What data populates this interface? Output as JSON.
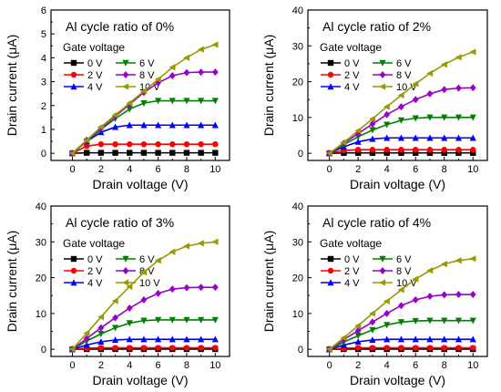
{
  "figure": {
    "x_label": "Drain voltage (V)",
    "y_label": "Drain current (μA)",
    "legend_title": "Gate voltage"
  },
  "series_colors": {
    "0 V": "#000000",
    "2 V": "#ff0000",
    "4 V": "#0000ff",
    "6 V": "#008000",
    "8 V": "#9900cc",
    "10 V": "#999900"
  },
  "series_markers": {
    "0 V": "square",
    "2 V": "circle",
    "4 V": "triangle-up",
    "6 V": "triangle-down",
    "8 V": "diamond",
    "10 V": "triangle-left"
  },
  "chart_data": [
    {
      "type": "line",
      "title": "Al cycle ratio of 0%",
      "xlabel": "Drain voltage (V)",
      "ylabel": "Drain current (μA)",
      "xlim": [
        -1.5,
        11
      ],
      "ylim": [
        -0.3,
        6
      ],
      "xticks": [
        0,
        2,
        4,
        6,
        8,
        10
      ],
      "yticks": [
        0,
        1,
        2,
        3,
        4,
        5,
        6
      ],
      "legend_title": "Gate voltage",
      "legend_position": "top-left",
      "x": [
        0,
        1,
        2,
        3,
        4,
        5,
        6,
        7,
        8,
        9,
        10
      ],
      "series": [
        {
          "name": "0 V",
          "values": [
            0,
            0.02,
            0.02,
            0.02,
            0.02,
            0.02,
            0.02,
            0.02,
            0.02,
            0.02,
            0.02
          ]
        },
        {
          "name": "2 V",
          "values": [
            0,
            0.3,
            0.38,
            0.38,
            0.38,
            0.38,
            0.38,
            0.38,
            0.38,
            0.38,
            0.38
          ]
        },
        {
          "name": "4 V",
          "values": [
            0,
            0.5,
            0.88,
            1.1,
            1.18,
            1.18,
            1.18,
            1.18,
            1.18,
            1.18,
            1.18
          ]
        },
        {
          "name": "6 V",
          "values": [
            0,
            0.5,
            1.0,
            1.45,
            1.85,
            2.1,
            2.2,
            2.2,
            2.2,
            2.2,
            2.2
          ]
        },
        {
          "name": "8 V",
          "values": [
            0,
            0.55,
            1.05,
            1.55,
            2.05,
            2.55,
            2.95,
            3.25,
            3.38,
            3.4,
            3.4
          ]
        },
        {
          "name": "10 V",
          "values": [
            0,
            0.55,
            1.1,
            1.6,
            2.1,
            2.6,
            3.1,
            3.6,
            4.0,
            4.35,
            4.55
          ]
        }
      ]
    },
    {
      "type": "line",
      "title": "Al cycle ratio of 2%",
      "xlabel": "Drain voltage (V)",
      "ylabel": "Drain current (μA)",
      "xlim": [
        -1.5,
        11
      ],
      "ylim": [
        -2,
        40
      ],
      "xticks": [
        0,
        2,
        4,
        6,
        8,
        10
      ],
      "yticks": [
        0,
        10,
        20,
        30,
        40
      ],
      "legend_title": "Gate voltage",
      "legend_position": "top-left",
      "x": [
        0,
        1,
        2,
        3,
        4,
        5,
        6,
        7,
        8,
        9,
        10
      ],
      "series": [
        {
          "name": "0 V",
          "values": [
            0,
            0.1,
            0.1,
            0.1,
            0.1,
            0.1,
            0.1,
            0.1,
            0.1,
            0.1,
            0.1
          ]
        },
        {
          "name": "2 V",
          "values": [
            0,
            0.8,
            1.0,
            1.0,
            1.0,
            1.0,
            1.0,
            1.0,
            1.0,
            1.0,
            1.0
          ]
        },
        {
          "name": "4 V",
          "values": [
            0,
            1.8,
            3.2,
            4.0,
            4.3,
            4.3,
            4.3,
            4.3,
            4.3,
            4.3,
            4.3
          ]
        },
        {
          "name": "6 V",
          "values": [
            0,
            2.4,
            4.6,
            6.5,
            8.0,
            9.2,
            9.8,
            10.0,
            10.0,
            10.0,
            10.0
          ]
        },
        {
          "name": "8 V",
          "values": [
            0,
            2.8,
            5.5,
            8.2,
            10.8,
            13.0,
            15.0,
            16.6,
            17.8,
            18.2,
            18.3
          ]
        },
        {
          "name": "10 V",
          "values": [
            0,
            3.0,
            6.3,
            9.6,
            13.0,
            16.2,
            19.4,
            22.3,
            24.8,
            26.8,
            28.3
          ]
        }
      ]
    },
    {
      "type": "line",
      "title": "Al cycle ratio of 3%",
      "xlabel": "Drain voltage (V)",
      "ylabel": "Drain current (μA)",
      "xlim": [
        -1.5,
        11
      ],
      "ylim": [
        -2,
        40
      ],
      "xticks": [
        0,
        2,
        4,
        6,
        8,
        10
      ],
      "yticks": [
        0,
        10,
        20,
        30,
        40
      ],
      "legend_title": "Gate voltage",
      "legend_position": "top-left",
      "x": [
        0,
        1,
        2,
        3,
        4,
        5,
        6,
        7,
        8,
        9,
        10
      ],
      "series": [
        {
          "name": "0 V",
          "values": [
            0,
            0.05,
            0.05,
            0.05,
            0.05,
            0.05,
            0.05,
            0.05,
            0.05,
            0.05,
            0.05
          ]
        },
        {
          "name": "2 V",
          "values": [
            0,
            0.3,
            0.4,
            0.4,
            0.4,
            0.4,
            0.4,
            0.4,
            0.4,
            0.4,
            0.4
          ]
        },
        {
          "name": "4 V",
          "values": [
            0,
            1.2,
            2.1,
            2.6,
            2.8,
            2.8,
            2.8,
            2.8,
            2.8,
            2.8,
            2.8
          ]
        },
        {
          "name": "6 V",
          "values": [
            0,
            2.3,
            4.3,
            6.0,
            7.3,
            8.0,
            8.2,
            8.2,
            8.2,
            8.2,
            8.2
          ]
        },
        {
          "name": "8 V",
          "values": [
            0,
            3.0,
            6.0,
            8.8,
            11.5,
            13.8,
            15.6,
            16.8,
            17.2,
            17.3,
            17.3
          ]
        },
        {
          "name": "10 V",
          "values": [
            0,
            4.5,
            9.0,
            13.5,
            17.5,
            21.5,
            24.8,
            27.2,
            28.8,
            29.6,
            30.0
          ]
        }
      ]
    },
    {
      "type": "line",
      "title": "Al cycle ratio of 4%",
      "xlabel": "Drain voltage (V)",
      "ylabel": "Drain current (μA)",
      "xlim": [
        -1.5,
        11
      ],
      "ylim": [
        -2,
        40
      ],
      "xticks": [
        0,
        2,
        4,
        6,
        8,
        10
      ],
      "yticks": [
        0,
        10,
        20,
        30,
        40
      ],
      "legend_title": "Gate voltage",
      "legend_position": "top-left",
      "x": [
        0,
        1,
        2,
        3,
        4,
        5,
        6,
        7,
        8,
        9,
        10
      ],
      "series": [
        {
          "name": "0 V",
          "values": [
            0,
            0.05,
            0.05,
            0.05,
            0.05,
            0.05,
            0.05,
            0.05,
            0.05,
            0.05,
            0.05
          ]
        },
        {
          "name": "2 V",
          "values": [
            0,
            0.3,
            0.4,
            0.4,
            0.4,
            0.4,
            0.4,
            0.4,
            0.4,
            0.4,
            0.4
          ]
        },
        {
          "name": "4 V",
          "values": [
            0,
            1.2,
            2.1,
            2.6,
            2.8,
            2.8,
            2.8,
            2.8,
            2.8,
            2.8,
            2.8
          ]
        },
        {
          "name": "6 V",
          "values": [
            0,
            2.0,
            3.8,
            5.4,
            6.8,
            7.6,
            7.9,
            8.0,
            8.0,
            8.0,
            8.0
          ]
        },
        {
          "name": "8 V",
          "values": [
            0,
            2.7,
            5.2,
            7.6,
            10.0,
            12.2,
            13.8,
            14.8,
            15.2,
            15.3,
            15.3
          ]
        },
        {
          "name": "10 V",
          "values": [
            0,
            3.2,
            6.6,
            10.0,
            13.4,
            16.6,
            19.6,
            22.0,
            23.8,
            24.8,
            25.3
          ]
        }
      ]
    }
  ]
}
